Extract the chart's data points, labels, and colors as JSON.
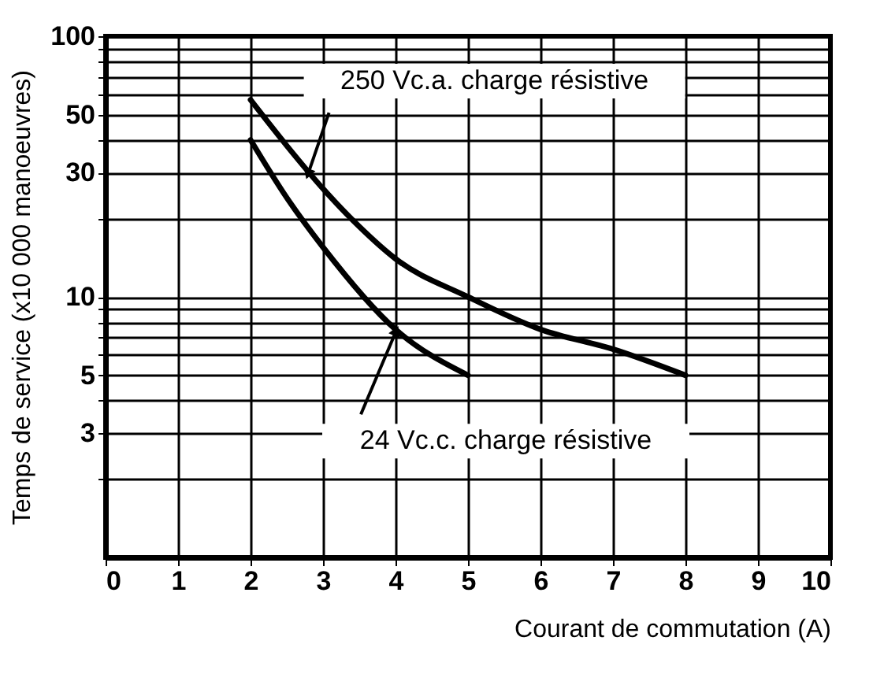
{
  "chart_data": {
    "type": "line",
    "xlabel": "Courant de commutation (A)",
    "ylabel": "Temps de service (x10 000 manoeuvres)",
    "xlim": [
      0,
      10
    ],
    "xticks": [
      0,
      1,
      2,
      3,
      4,
      5,
      6,
      7,
      8,
      9,
      10
    ],
    "ylim": [
      1,
      100
    ],
    "log": "y",
    "grid": true,
    "marker": "none",
    "line_style": "solid",
    "legend": false,
    "yticks": [
      {
        "value": 2,
        "label": null
      },
      3,
      {
        "value": 4,
        "label": null
      },
      5,
      {
        "value": 6,
        "label": null
      },
      {
        "value": 7,
        "label": null
      },
      {
        "value": 8,
        "label": null
      },
      {
        "value": 9,
        "label": null
      },
      10,
      {
        "value": 20,
        "label": null
      },
      30,
      {
        "value": 40,
        "label": null
      },
      50,
      {
        "value": 60,
        "label": null
      },
      {
        "value": 70,
        "label": null
      },
      {
        "value": 80,
        "label": null
      },
      {
        "value": 90,
        "label": null
      },
      100
    ],
    "series": [
      {
        "color": "#000000",
        "x": [
          2,
          2.5,
          3,
          3.5,
          4,
          5,
          6,
          7,
          8
        ],
        "values": [
          57,
          38,
          26,
          18.6,
          14,
          10,
          7.5,
          6.3,
          5
        ]
      },
      {
        "color": "#000000",
        "x": [
          2,
          2.5,
          3,
          4,
          5
        ],
        "values": [
          40,
          24,
          15.5,
          7.5,
          5
        ]
      }
    ],
    "annotations": [
      {
        "text": "250 Vc.a. charge résistive",
        "x": 2.8,
        "y": 30
      },
      {
        "text": "24 Vc.c. charge résistive",
        "x": 4,
        "y": 7.3
      }
    ]
  }
}
